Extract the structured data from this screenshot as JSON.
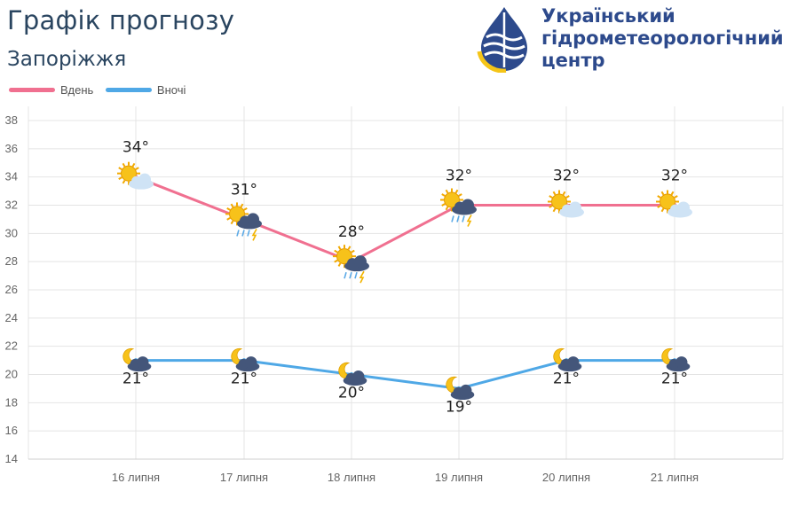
{
  "header": {
    "title": "Графік прогнозу",
    "city": "Запоріжжя"
  },
  "logo": {
    "icon": "water-drop-logo-icon",
    "lines": [
      "Український",
      "гідрометеорологічний",
      "центр"
    ]
  },
  "colors": {
    "day": "#f07090",
    "night": "#4fa8e6",
    "grid": "#e4e4e4",
    "axis_text": "#666666",
    "value_text": "#222222"
  },
  "chart_data": {
    "type": "line",
    "categories": [
      "16 липня",
      "17 липня",
      "18 липня",
      "19 липня",
      "20 липня",
      "21 липня"
    ],
    "series": [
      {
        "name": "Вдень",
        "values": [
          34,
          31,
          28,
          32,
          32,
          32
        ],
        "labels": [
          "34°",
          "31°",
          "28°",
          "32°",
          "32°",
          "32°"
        ],
        "icons": [
          "sun-cloud-icon",
          "sun-thunderstorm-icon",
          "sun-thunderstorm-icon",
          "sun-thunderstorm-icon",
          "sun-cloud-icon",
          "sun-cloud-icon"
        ]
      },
      {
        "name": "Вночі",
        "values": [
          21,
          21,
          20,
          19,
          21,
          21
        ],
        "labels": [
          "21°",
          "21°",
          "20°",
          "19°",
          "21°",
          "21°"
        ],
        "icons": [
          "moon-cloud-icon",
          "moon-cloud-icon",
          "moon-cloud-icon",
          "moon-cloud-icon",
          "moon-cloud-icon",
          "moon-cloud-icon"
        ]
      }
    ],
    "y_ticks": [
      "14",
      "16",
      "18",
      "20",
      "22",
      "24",
      "26",
      "28",
      "30",
      "32",
      "34",
      "36",
      "38"
    ],
    "ylim": [
      14,
      38
    ],
    "grid": true,
    "legend": "top-left"
  }
}
